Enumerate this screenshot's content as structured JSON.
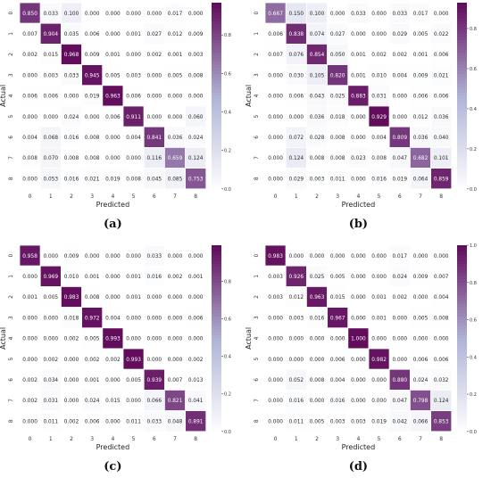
{
  "chart_data": [
    {
      "type": "heatmap",
      "panel_label": "(a)",
      "xlabel": "Predicted",
      "ylabel": "Actual",
      "x_ticks": [
        "0",
        "1",
        "2",
        "3",
        "4",
        "5",
        "6",
        "7",
        "8"
      ],
      "y_ticks": [
        "0",
        "1",
        "2",
        "3",
        "4",
        "5",
        "6",
        "7",
        "8"
      ],
      "colorbar_ticks": [
        "0.0",
        "0.2",
        "0.4",
        "0.6",
        "0.8"
      ],
      "vmin": 0,
      "vmax": 0.968,
      "values": [
        [
          "0.850",
          "0.033",
          "0.100",
          "0.000",
          "0.000",
          "0.000",
          "0.000",
          "0.017",
          "0.000"
        ],
        [
          "0.007",
          "0.904",
          "0.035",
          "0.006",
          "0.000",
          "0.001",
          "0.027",
          "0.012",
          "0.009"
        ],
        [
          "0.002",
          "0.015",
          "0.968",
          "0.009",
          "0.001",
          "0.000",
          "0.002",
          "0.001",
          "0.003"
        ],
        [
          "0.000",
          "0.003",
          "0.033",
          "0.945",
          "0.005",
          "0.003",
          "0.000",
          "0.005",
          "0.008"
        ],
        [
          "0.006",
          "0.006",
          "0.000",
          "0.019",
          "0.963",
          "0.006",
          "0.000",
          "0.000",
          "0.000"
        ],
        [
          "0.000",
          "0.000",
          "0.024",
          "0.000",
          "0.006",
          "0.911",
          "0.000",
          "0.000",
          "0.060"
        ],
        [
          "0.004",
          "0.068",
          "0.016",
          "0.008",
          "0.000",
          "0.004",
          "0.841",
          "0.036",
          "0.024"
        ],
        [
          "0.008",
          "0.070",
          "0.008",
          "0.008",
          "0.000",
          "0.000",
          "0.116",
          "0.659",
          "0.124"
        ],
        [
          "0.000",
          "0.053",
          "0.016",
          "0.021",
          "0.019",
          "0.008",
          "0.045",
          "0.085",
          "0.753"
        ]
      ]
    },
    {
      "type": "heatmap",
      "panel_label": "(b)",
      "xlabel": "Predicted",
      "ylabel": "Actual",
      "x_ticks": [
        "0",
        "1",
        "2",
        "3",
        "4",
        "5",
        "6",
        "7",
        "8"
      ],
      "y_ticks": [
        "0",
        "1",
        "2",
        "3",
        "4",
        "5",
        "6",
        "7",
        "8"
      ],
      "colorbar_ticks": [
        "0.0",
        "0.2",
        "0.4",
        "0.6",
        "0.8"
      ],
      "vmin": 0,
      "vmax": 0.929,
      "values": [
        [
          "0.667",
          "0.150",
          "0.100",
          "0.000",
          "0.033",
          "0.000",
          "0.033",
          "0.017",
          "0.000"
        ],
        [
          "0.006",
          "0.838",
          "0.074",
          "0.027",
          "0.000",
          "0.000",
          "0.029",
          "0.005",
          "0.022"
        ],
        [
          "0.007",
          "0.076",
          "0.854",
          "0.050",
          "0.001",
          "0.002",
          "0.002",
          "0.001",
          "0.006"
        ],
        [
          "0.000",
          "0.030",
          "0.105",
          "0.820",
          "0.001",
          "0.010",
          "0.004",
          "0.009",
          "0.021"
        ],
        [
          "0.000",
          "0.006",
          "0.043",
          "0.025",
          "0.883",
          "0.031",
          "0.000",
          "0.006",
          "0.006"
        ],
        [
          "0.000",
          "0.000",
          "0.036",
          "0.018",
          "0.000",
          "0.929",
          "0.000",
          "0.012",
          "0.036"
        ],
        [
          "0.000",
          "0.072",
          "0.028",
          "0.008",
          "0.000",
          "0.004",
          "0.809",
          "0.036",
          "0.040"
        ],
        [
          "0.000",
          "0.124",
          "0.008",
          "0.008",
          "0.023",
          "0.008",
          "0.047",
          "0.682",
          "0.101"
        ],
        [
          "0.000",
          "0.029",
          "0.003",
          "0.011",
          "0.000",
          "0.016",
          "0.019",
          "0.064",
          "0.859"
        ]
      ]
    },
    {
      "type": "heatmap",
      "panel_label": "(c)",
      "xlabel": "Predicted",
      "ylabel": "Actual",
      "x_ticks": [
        "0",
        "1",
        "2",
        "3",
        "4",
        "5",
        "6",
        "7",
        "8"
      ],
      "y_ticks": [
        "0",
        "1",
        "2",
        "3",
        "4",
        "5",
        "6",
        "7",
        "8"
      ],
      "colorbar_ticks": [
        "0.0",
        "0.2",
        "0.4",
        "0.6",
        "0.8"
      ],
      "vmin": 0,
      "vmax": 0.993,
      "values": [
        [
          "0.958",
          "0.000",
          "0.009",
          "0.000",
          "0.000",
          "0.000",
          "0.033",
          "0.000",
          "0.000"
        ],
        [
          "0.000",
          "0.969",
          "0.010",
          "0.001",
          "0.000",
          "0.001",
          "0.016",
          "0.002",
          "0.001"
        ],
        [
          "0.001",
          "0.005",
          "0.983",
          "0.008",
          "0.000",
          "0.001",
          "0.000",
          "0.000",
          "0.000"
        ],
        [
          "0.000",
          "0.000",
          "0.018",
          "0.972",
          "0.004",
          "0.000",
          "0.000",
          "0.000",
          "0.006"
        ],
        [
          "0.000",
          "0.000",
          "0.002",
          "0.005",
          "0.993",
          "0.000",
          "0.000",
          "0.000",
          "0.000"
        ],
        [
          "0.000",
          "0.002",
          "0.000",
          "0.002",
          "0.002",
          "0.993",
          "0.000",
          "0.000",
          "0.002"
        ],
        [
          "0.002",
          "0.034",
          "0.000",
          "0.001",
          "0.000",
          "0.005",
          "0.939",
          "0.007",
          "0.013"
        ],
        [
          "0.002",
          "0.031",
          "0.000",
          "0.024",
          "0.015",
          "0.000",
          "0.066",
          "0.821",
          "0.041"
        ],
        [
          "0.000",
          "0.011",
          "0.002",
          "0.006",
          "0.000",
          "0.011",
          "0.033",
          "0.048",
          "0.891"
        ]
      ]
    },
    {
      "type": "heatmap",
      "panel_label": "(d)",
      "xlabel": "Predicted",
      "ylabel": "Actual",
      "x_ticks": [
        "0",
        "1",
        "2",
        "3",
        "4",
        "5",
        "6",
        "7",
        "8"
      ],
      "y_ticks": [
        "0",
        "1",
        "2",
        "3",
        "4",
        "5",
        "6",
        "7",
        "8"
      ],
      "colorbar_ticks": [
        "0.0",
        "0.2",
        "0.4",
        "0.6",
        "0.8",
        "1.0"
      ],
      "vmin": 0,
      "vmax": 1.0,
      "values": [
        [
          "0.983",
          "0.000",
          "0.000",
          "0.000",
          "0.000",
          "0.000",
          "0.017",
          "0.000",
          "0.000"
        ],
        [
          "0.003",
          "0.926",
          "0.025",
          "0.005",
          "0.000",
          "0.000",
          "0.024",
          "0.009",
          "0.007"
        ],
        [
          "0.003",
          "0.012",
          "0.963",
          "0.015",
          "0.000",
          "0.001",
          "0.002",
          "0.000",
          "0.004"
        ],
        [
          "0.000",
          "0.003",
          "0.016",
          "0.967",
          "0.000",
          "0.001",
          "0.000",
          "0.005",
          "0.008"
        ],
        [
          "0.000",
          "0.000",
          "0.000",
          "0.000",
          "1.000",
          "0.000",
          "0.000",
          "0.000",
          "0.000"
        ],
        [
          "0.000",
          "0.000",
          "0.000",
          "0.006",
          "0.000",
          "0.982",
          "0.000",
          "0.006",
          "0.006"
        ],
        [
          "0.000",
          "0.052",
          "0.008",
          "0.004",
          "0.000",
          "0.000",
          "0.880",
          "0.024",
          "0.032"
        ],
        [
          "0.000",
          "0.016",
          "0.000",
          "0.016",
          "0.000",
          "0.000",
          "0.047",
          "0.798",
          "0.124"
        ],
        [
          "0.000",
          "0.011",
          "0.005",
          "0.003",
          "0.003",
          "0.019",
          "0.042",
          "0.066",
          "0.853"
        ]
      ]
    }
  ],
  "colors": {
    "low": "#ffffff",
    "mid": "#b0b5d6",
    "high": "#620c5c",
    "grid_line": "#ffffff"
  }
}
